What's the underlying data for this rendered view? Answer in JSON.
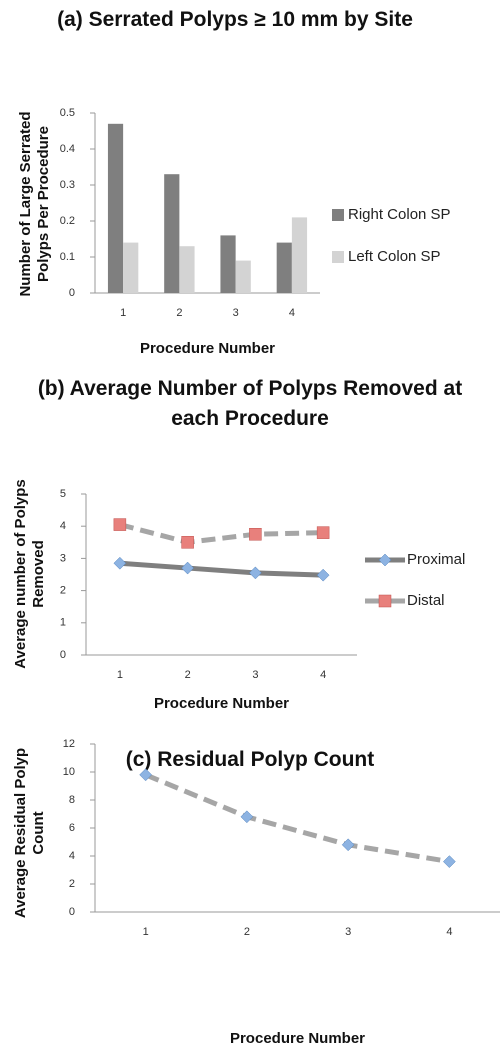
{
  "chart_data": [
    {
      "type": "bar",
      "title": "(a) Serrated Polyps  ≥ 10 mm by Site",
      "x_label": "Procedure Number",
      "y_label": "Number of Large Serrated Polyps Per Procedure",
      "categories": [
        "1",
        "2",
        "3",
        "4"
      ],
      "series": [
        {
          "name": "Right Colon SP",
          "color": "#7f7f7f",
          "values": [
            0.47,
            0.33,
            0.16,
            0.14
          ]
        },
        {
          "name": "Left Colon SP",
          "color": "#d3d3d3",
          "values": [
            0.14,
            0.13,
            0.09,
            0.21
          ]
        }
      ],
      "ylim": [
        0,
        0.5
      ],
      "yticks": [
        0,
        0.1,
        0.2,
        0.3,
        0.4,
        0.5
      ],
      "grid": false,
      "legend": "right"
    },
    {
      "type": "line",
      "title": "(b) Average Number of Polyps Removed at each Procedure",
      "x_label": "Procedure Number",
      "y_label": "Average number of Polyps Removed",
      "categories": [
        "1",
        "2",
        "3",
        "4"
      ],
      "series": [
        {
          "name": "Proximal",
          "color": "#8db3e2",
          "line_color": "#7f7f7f",
          "dashed": false,
          "marker": "diamond",
          "values": [
            2.85,
            2.7,
            2.55,
            2.48
          ]
        },
        {
          "name": "Distal",
          "color": "#e8807c",
          "line_color": "#a6a6a6",
          "dashed": true,
          "marker": "square",
          "values": [
            4.05,
            3.5,
            3.75,
            3.8
          ]
        }
      ],
      "ylim": [
        0,
        5
      ],
      "yticks": [
        0,
        1,
        2,
        3,
        4,
        5
      ],
      "grid": false,
      "legend": "right"
    },
    {
      "type": "line",
      "title": "(c) Residual Polyp Count",
      "x_label": "Procedure Number",
      "y_label": "Average Residual Polyp Count",
      "categories": [
        "1",
        "2",
        "3",
        "4"
      ],
      "series": [
        {
          "color": "#8db3e2",
          "line_color": "#a6a6a6",
          "dashed": true,
          "marker": "diamond",
          "values": [
            9.8,
            6.8,
            4.8,
            3.6
          ]
        }
      ],
      "ylim": [
        0,
        12
      ],
      "yticks": [
        0,
        2,
        4,
        6,
        8,
        10,
        12
      ],
      "grid": false
    }
  ]
}
